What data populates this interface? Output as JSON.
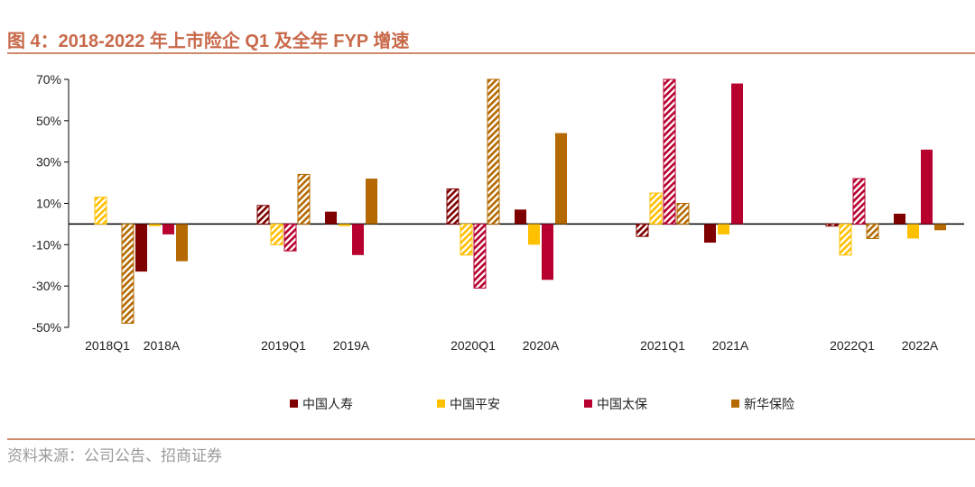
{
  "figure": {
    "title": "图 4：2018-2022 年上市险企 Q1 及全年 FYP 增速",
    "source": "资料来源：公司公告、招商证券"
  },
  "chart_data": {
    "type": "bar",
    "title": "2018-2022 年上市险企 Q1 及全年 FYP 增速",
    "xlabel": "",
    "ylabel": "",
    "ylim": [
      -50,
      70
    ],
    "yticks": [
      -50,
      -30,
      -10,
      10,
      30,
      50,
      70
    ],
    "ytick_labels": [
      "-50%",
      "-30%",
      "-10%",
      "10%",
      "30%",
      "50%",
      "70%"
    ],
    "categories": [
      "2018Q1",
      "2018A",
      "2019Q1",
      "2019A",
      "2020Q1",
      "2020A",
      "2021Q1",
      "2021A",
      "2022Q1",
      "2022A"
    ],
    "pattern_note": "Q1 bars are hatched, full-year (A) bars are solid",
    "series": [
      {
        "name": "中国人寿",
        "color": "#7f0000",
        "values": [
          0,
          -23,
          9,
          6,
          17,
          7,
          -6,
          -9,
          -1,
          5
        ]
      },
      {
        "name": "中国平安",
        "color": "#ffc000",
        "values": [
          13,
          -1,
          -10,
          -1,
          -15,
          -10,
          15,
          -5,
          -15,
          -7
        ]
      },
      {
        "name": "中国太保",
        "color": "#b7002e",
        "values": [
          0,
          -5,
          -13,
          -15,
          -31,
          -27,
          70,
          68,
          22,
          36
        ]
      },
      {
        "name": "新华保险",
        "color": "#b46a00",
        "values": [
          -48,
          -18,
          24,
          22,
          70,
          44,
          10,
          0,
          -7,
          -3
        ]
      }
    ]
  }
}
